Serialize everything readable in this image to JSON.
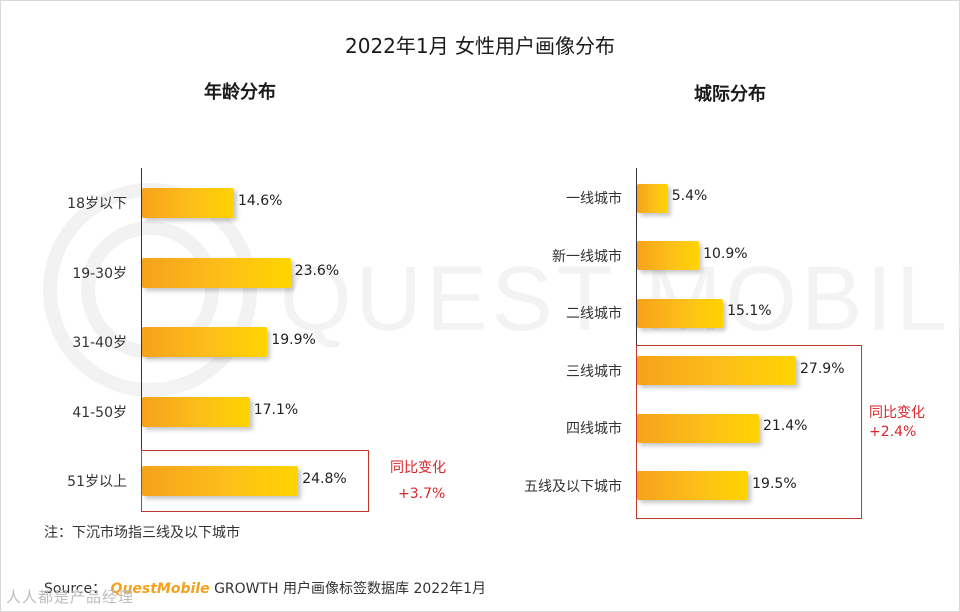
{
  "title": "2022年1月 女性用户画像分布",
  "watermark": "QUEST MOBILE",
  "colors": {
    "bar_start": "#f7a21b",
    "bar_end": "#ffd400",
    "highlight": "#d9262c"
  },
  "chart_data": [
    {
      "type": "bar",
      "orientation": "horizontal",
      "title": "年龄分布",
      "categories": [
        "18岁以下",
        "19-30岁",
        "31-40岁",
        "41-50岁",
        "51岁以上"
      ],
      "values": [
        14.6,
        23.6,
        19.9,
        17.1,
        24.8
      ],
      "value_labels": [
        "14.6%",
        "23.6%",
        "19.9%",
        "17.1%",
        "24.8%"
      ],
      "unit": "%",
      "highlight": {
        "categories": [
          "51岁以上"
        ],
        "label": "同比变化",
        "value": "+3.7%"
      }
    },
    {
      "type": "bar",
      "orientation": "horizontal",
      "title": "城际分布",
      "categories": [
        "一线城市",
        "新一线城市",
        "二线城市",
        "三线城市",
        "四线城市",
        "五线及以下城市"
      ],
      "values": [
        5.4,
        10.9,
        15.1,
        27.9,
        21.4,
        19.5
      ],
      "value_labels": [
        "5.4%",
        "10.9%",
        "15.1%",
        "27.9%",
        "21.4%",
        "19.5%"
      ],
      "unit": "%",
      "highlight": {
        "categories": [
          "三线城市",
          "四线城市",
          "五线及以下城市"
        ],
        "label": "同比变化",
        "value": "+2.4%"
      }
    }
  ],
  "note": "注：下沉市场指三线及以下城市",
  "source": {
    "prefix": "Source：",
    "brand": "QuestMobile",
    "suffix": "GROWTH 用户画像标签数据库 2022年1月"
  },
  "corner_mark": "人人都是产品经理"
}
